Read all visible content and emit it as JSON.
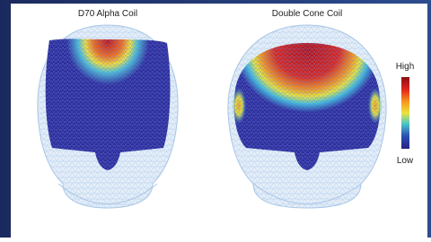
{
  "panels": [
    {
      "title": "D70 Alpha Coil"
    },
    {
      "title": "Double Cone Coil"
    }
  ],
  "colorbar": {
    "high_label": "High",
    "low_label": "Low"
  }
}
